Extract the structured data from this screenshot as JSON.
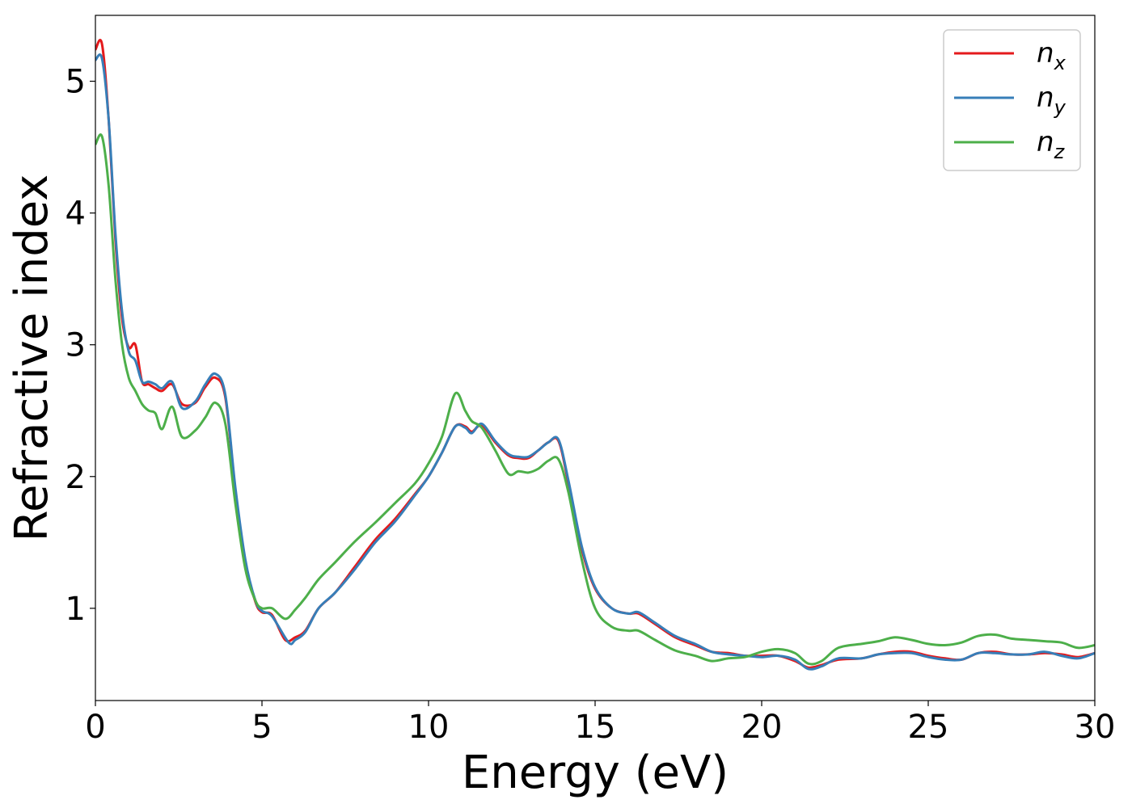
{
  "chart_data": {
    "type": "line",
    "xlabel": "Energy (eV)",
    "ylabel": "Refractive index",
    "xlim": [
      0,
      30
    ],
    "ylim": [
      0.3,
      5.5
    ],
    "xticks": [
      0,
      5,
      10,
      15,
      20,
      25,
      30
    ],
    "yticks": [
      1,
      2,
      3,
      4,
      5
    ],
    "grid": false,
    "legend_position": "top-right",
    "series": [
      {
        "name": "n",
        "subscript": "x",
        "color": "#e41a1c",
        "x": [
          0,
          0.2,
          0.4,
          0.6,
          0.8,
          1.0,
          1.2,
          1.4,
          1.6,
          1.8,
          2.0,
          2.3,
          2.6,
          3.0,
          3.3,
          3.6,
          3.9,
          4.2,
          4.5,
          4.8,
          5.0,
          5.3,
          5.7,
          6.0,
          6.3,
          6.7,
          7.2,
          7.8,
          8.4,
          9.0,
          9.6,
          10.0,
          10.4,
          10.8,
          11.1,
          11.3,
          11.6,
          12.0,
          12.4,
          12.7,
          13.0,
          13.3,
          13.6,
          13.9,
          14.2,
          14.6,
          15.0,
          15.5,
          16.0,
          16.3,
          16.8,
          17.4,
          18.0,
          18.5,
          19.0,
          19.5,
          20.0,
          20.5,
          21.0,
          21.4,
          21.8,
          22.3,
          23.0,
          23.5,
          24.0,
          24.5,
          25.0,
          25.5,
          26.0,
          26.5,
          27.0,
          27.5,
          28.0,
          28.5,
          29.0,
          29.5,
          30.0
        ],
        "y": [
          5.24,
          5.28,
          4.7,
          3.8,
          3.2,
          2.98,
          3.0,
          2.72,
          2.7,
          2.67,
          2.65,
          2.7,
          2.55,
          2.56,
          2.68,
          2.75,
          2.6,
          1.9,
          1.35,
          1.05,
          0.97,
          0.95,
          0.76,
          0.78,
          0.83,
          1.0,
          1.12,
          1.32,
          1.52,
          1.68,
          1.87,
          2.0,
          2.18,
          2.38,
          2.38,
          2.34,
          2.39,
          2.26,
          2.16,
          2.14,
          2.14,
          2.2,
          2.26,
          2.27,
          1.95,
          1.45,
          1.15,
          1.0,
          0.96,
          0.96,
          0.88,
          0.78,
          0.72,
          0.67,
          0.66,
          0.64,
          0.64,
          0.64,
          0.6,
          0.55,
          0.57,
          0.61,
          0.62,
          0.65,
          0.67,
          0.67,
          0.64,
          0.62,
          0.61,
          0.66,
          0.67,
          0.65,
          0.65,
          0.66,
          0.65,
          0.63,
          0.66
        ]
      },
      {
        "name": "n",
        "subscript": "y",
        "color": "#377eb8",
        "x": [
          0,
          0.2,
          0.4,
          0.6,
          0.8,
          1.0,
          1.2,
          1.4,
          1.6,
          1.8,
          2.0,
          2.3,
          2.6,
          3.0,
          3.3,
          3.6,
          3.9,
          4.2,
          4.5,
          4.8,
          5.0,
          5.3,
          5.8,
          6.0,
          6.3,
          6.7,
          7.2,
          7.8,
          8.4,
          9.0,
          9.6,
          10.0,
          10.4,
          10.8,
          11.1,
          11.3,
          11.6,
          12.0,
          12.4,
          12.7,
          13.0,
          13.3,
          13.6,
          13.9,
          14.2,
          14.6,
          15.0,
          15.5,
          16.0,
          16.3,
          16.8,
          17.4,
          18.0,
          18.5,
          19.0,
          19.5,
          20.0,
          20.5,
          21.0,
          21.4,
          21.8,
          22.3,
          23.0,
          23.5,
          24.0,
          24.5,
          25.0,
          25.5,
          26.0,
          26.5,
          27.0,
          27.5,
          28.0,
          28.5,
          29.0,
          29.5,
          30.0
        ],
        "y": [
          5.16,
          5.17,
          4.7,
          3.85,
          3.25,
          2.95,
          2.88,
          2.72,
          2.72,
          2.7,
          2.67,
          2.72,
          2.52,
          2.57,
          2.7,
          2.78,
          2.62,
          1.92,
          1.37,
          1.06,
          0.98,
          0.94,
          0.74,
          0.76,
          0.82,
          1.0,
          1.12,
          1.3,
          1.5,
          1.66,
          1.86,
          2.0,
          2.18,
          2.38,
          2.37,
          2.33,
          2.4,
          2.27,
          2.17,
          2.15,
          2.15,
          2.2,
          2.26,
          2.28,
          1.97,
          1.47,
          1.16,
          1.0,
          0.96,
          0.97,
          0.89,
          0.79,
          0.73,
          0.67,
          0.65,
          0.64,
          0.63,
          0.64,
          0.61,
          0.54,
          0.56,
          0.62,
          0.62,
          0.65,
          0.66,
          0.66,
          0.63,
          0.61,
          0.61,
          0.66,
          0.66,
          0.65,
          0.65,
          0.67,
          0.64,
          0.62,
          0.66
        ]
      },
      {
        "name": "n",
        "subscript": "z",
        "color": "#4daf4a",
        "x": [
          0,
          0.2,
          0.4,
          0.6,
          0.8,
          1.0,
          1.2,
          1.4,
          1.6,
          1.8,
          2.0,
          2.3,
          2.6,
          3.0,
          3.3,
          3.6,
          3.9,
          4.2,
          4.5,
          4.8,
          5.0,
          5.3,
          5.7,
          6.0,
          6.3,
          6.7,
          7.2,
          7.8,
          8.4,
          9.0,
          9.6,
          10.0,
          10.4,
          10.8,
          11.1,
          11.3,
          11.6,
          12.0,
          12.4,
          12.7,
          13.0,
          13.3,
          13.6,
          13.9,
          14.2,
          14.6,
          15.0,
          15.5,
          16.0,
          16.3,
          16.8,
          17.4,
          18.0,
          18.5,
          19.0,
          19.5,
          20.0,
          20.5,
          21.0,
          21.4,
          21.8,
          22.3,
          23.0,
          23.5,
          24.0,
          24.5,
          25.0,
          25.5,
          26.0,
          26.5,
          27.0,
          27.5,
          28.0,
          28.5,
          29.0,
          29.5,
          30.0
        ],
        "y": [
          4.52,
          4.58,
          4.2,
          3.5,
          3.0,
          2.75,
          2.65,
          2.55,
          2.5,
          2.48,
          2.36,
          2.53,
          2.3,
          2.35,
          2.45,
          2.56,
          2.4,
          1.8,
          1.3,
          1.06,
          1.0,
          1.0,
          0.92,
          0.99,
          1.08,
          1.22,
          1.35,
          1.51,
          1.65,
          1.8,
          1.95,
          2.1,
          2.3,
          2.63,
          2.5,
          2.42,
          2.37,
          2.2,
          2.02,
          2.04,
          2.03,
          2.06,
          2.12,
          2.13,
          1.88,
          1.37,
          1.0,
          0.86,
          0.83,
          0.83,
          0.76,
          0.68,
          0.64,
          0.6,
          0.62,
          0.63,
          0.67,
          0.69,
          0.66,
          0.58,
          0.6,
          0.7,
          0.73,
          0.75,
          0.78,
          0.76,
          0.73,
          0.72,
          0.74,
          0.79,
          0.8,
          0.77,
          0.76,
          0.75,
          0.74,
          0.7,
          0.72
        ]
      }
    ]
  }
}
